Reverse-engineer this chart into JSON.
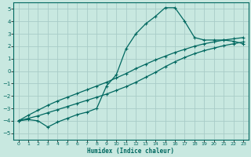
{
  "xlabel": "Humidex (Indice chaleur)",
  "ylabel": "",
  "bg_color": "#c8e8e0",
  "grid_color": "#a8ccc8",
  "line_color": "#006860",
  "xlim": [
    -0.5,
    23.5
  ],
  "ylim": [
    -5.5,
    5.5
  ],
  "xticks": [
    0,
    1,
    2,
    3,
    4,
    5,
    6,
    7,
    8,
    9,
    10,
    11,
    12,
    13,
    14,
    15,
    16,
    17,
    18,
    19,
    20,
    21,
    22,
    23
  ],
  "yticks": [
    -5,
    -4,
    -3,
    -2,
    -1,
    0,
    1,
    2,
    3,
    4,
    5
  ],
  "series1_x": [
    0,
    1,
    2,
    3,
    4,
    5,
    6,
    7,
    8,
    9,
    10,
    11,
    12,
    13,
    14,
    15,
    16,
    17,
    18,
    19,
    20,
    21,
    22,
    23
  ],
  "series1_y": [
    -4.0,
    -3.9,
    -4.0,
    -4.5,
    -4.1,
    -3.8,
    -3.5,
    -3.3,
    -3.0,
    -1.2,
    -0.3,
    1.8,
    3.0,
    3.8,
    4.4,
    5.1,
    5.1,
    4.0,
    2.7,
    2.5,
    2.5,
    2.5,
    2.4,
    2.2
  ],
  "series2_x": [
    0,
    1,
    2,
    3,
    4,
    5,
    6,
    7,
    8,
    9,
    10,
    11,
    12,
    13,
    14,
    15,
    16,
    17,
    18,
    19,
    20,
    21,
    22,
    23
  ],
  "series2_y": [
    -4.0,
    -3.8,
    -3.6,
    -3.35,
    -3.1,
    -2.85,
    -2.6,
    -2.35,
    -2.1,
    -1.85,
    -1.55,
    -1.25,
    -0.9,
    -0.5,
    -0.1,
    0.35,
    0.75,
    1.1,
    1.4,
    1.65,
    1.85,
    2.05,
    2.2,
    2.35
  ],
  "series3_x": [
    0,
    1,
    2,
    3,
    4,
    5,
    6,
    7,
    8,
    9,
    10,
    11,
    12,
    13,
    14,
    15,
    16,
    17,
    18,
    19,
    20,
    21,
    22,
    23
  ],
  "series3_y": [
    -4.0,
    -3.55,
    -3.15,
    -2.75,
    -2.4,
    -2.1,
    -1.8,
    -1.5,
    -1.2,
    -0.9,
    -0.55,
    -0.2,
    0.2,
    0.55,
    0.9,
    1.2,
    1.5,
    1.75,
    2.0,
    2.2,
    2.35,
    2.5,
    2.6,
    2.7
  ]
}
